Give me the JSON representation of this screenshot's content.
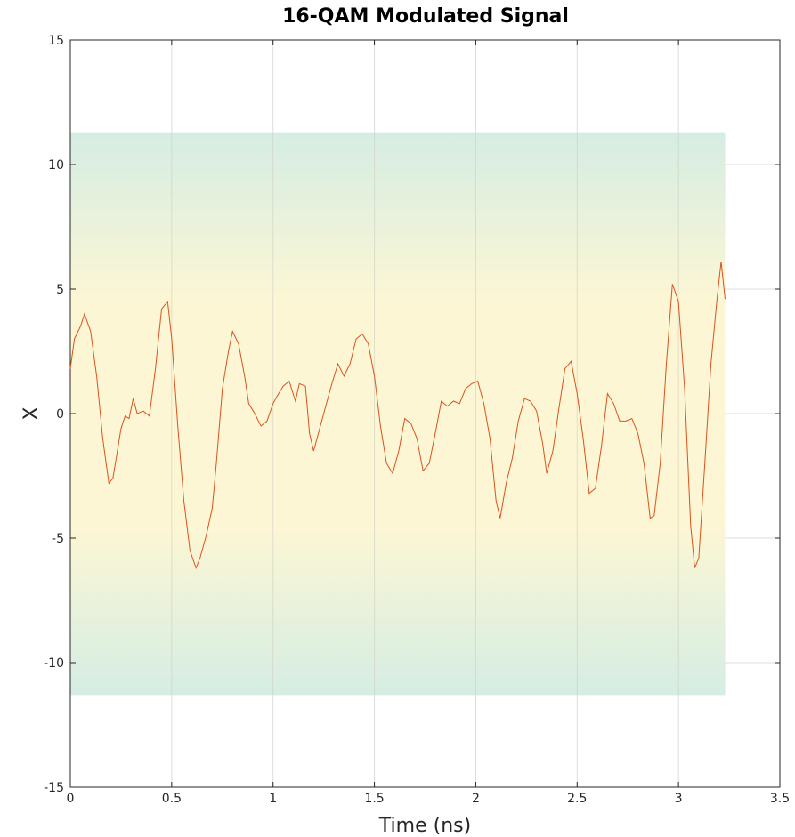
{
  "chart_data": {
    "type": "line",
    "title": "16-QAM Modulated Signal",
    "xlabel": "Time (ns)",
    "ylabel": "X",
    "xlim": [
      0,
      3.5
    ],
    "ylim": [
      -15,
      15
    ],
    "xticks": [
      0,
      0.5,
      1,
      1.5,
      2,
      2.5,
      3,
      3.5
    ],
    "xtick_labels": [
      "0",
      "0.5",
      "1",
      "1.5",
      "2",
      "2.5",
      "3",
      "3.5"
    ],
    "yticks": [
      -15,
      -10,
      -5,
      0,
      5,
      10,
      15
    ],
    "ytick_labels": [
      "-15",
      "-10",
      "-5",
      "0",
      "5",
      "10",
      "15"
    ],
    "grid": true,
    "background_band": {
      "x": [
        0,
        3.23
      ],
      "y": [
        -11.3,
        11.3
      ],
      "center_color": "#fcf6d2",
      "edge_color": "#d3ece2"
    },
    "series": [
      {
        "color": "#d9531e",
        "points": [
          [
            0.0,
            1.8
          ],
          [
            0.02,
            3.0
          ],
          [
            0.05,
            3.5
          ],
          [
            0.07,
            4.0
          ],
          [
            0.1,
            3.3
          ],
          [
            0.13,
            1.5
          ],
          [
            0.16,
            -1.0
          ],
          [
            0.19,
            -2.8
          ],
          [
            0.21,
            -2.6
          ],
          [
            0.23,
            -1.6
          ],
          [
            0.25,
            -0.6
          ],
          [
            0.27,
            -0.1
          ],
          [
            0.29,
            -0.2
          ],
          [
            0.31,
            0.6
          ],
          [
            0.33,
            0.0
          ],
          [
            0.36,
            0.1
          ],
          [
            0.39,
            -0.1
          ],
          [
            0.42,
            1.8
          ],
          [
            0.45,
            4.2
          ],
          [
            0.48,
            4.5
          ],
          [
            0.5,
            3.0
          ],
          [
            0.53,
            -0.5
          ],
          [
            0.56,
            -3.5
          ],
          [
            0.59,
            -5.5
          ],
          [
            0.62,
            -6.2
          ],
          [
            0.64,
            -5.8
          ],
          [
            0.67,
            -4.9
          ],
          [
            0.7,
            -3.8
          ],
          [
            0.72,
            -2.0
          ],
          [
            0.75,
            1.0
          ],
          [
            0.78,
            2.5
          ],
          [
            0.8,
            3.3
          ],
          [
            0.83,
            2.8
          ],
          [
            0.86,
            1.5
          ],
          [
            0.88,
            0.4
          ],
          [
            0.91,
            0.0
          ],
          [
            0.94,
            -0.5
          ],
          [
            0.97,
            -0.3
          ],
          [
            1.0,
            0.4
          ],
          [
            1.02,
            0.7
          ],
          [
            1.05,
            1.1
          ],
          [
            1.08,
            1.3
          ],
          [
            1.11,
            0.5
          ],
          [
            1.13,
            1.2
          ],
          [
            1.16,
            1.1
          ],
          [
            1.18,
            -0.8
          ],
          [
            1.2,
            -1.5
          ],
          [
            1.23,
            -0.6
          ],
          [
            1.26,
            0.3
          ],
          [
            1.29,
            1.2
          ],
          [
            1.32,
            2.0
          ],
          [
            1.35,
            1.5
          ],
          [
            1.38,
            2.0
          ],
          [
            1.41,
            3.0
          ],
          [
            1.44,
            3.2
          ],
          [
            1.47,
            2.8
          ],
          [
            1.5,
            1.5
          ],
          [
            1.53,
            -0.5
          ],
          [
            1.56,
            -2.0
          ],
          [
            1.59,
            -2.4
          ],
          [
            1.62,
            -1.5
          ],
          [
            1.65,
            -0.2
          ],
          [
            1.68,
            -0.4
          ],
          [
            1.71,
            -1.0
          ],
          [
            1.74,
            -2.3
          ],
          [
            1.77,
            -2.0
          ],
          [
            1.8,
            -0.8
          ],
          [
            1.83,
            0.5
          ],
          [
            1.86,
            0.3
          ],
          [
            1.89,
            0.5
          ],
          [
            1.92,
            0.4
          ],
          [
            1.95,
            1.0
          ],
          [
            1.98,
            1.2
          ],
          [
            2.01,
            1.3
          ],
          [
            2.04,
            0.4
          ],
          [
            2.07,
            -1.0
          ],
          [
            2.1,
            -3.5
          ],
          [
            2.12,
            -4.2
          ],
          [
            2.15,
            -2.8
          ],
          [
            2.18,
            -1.8
          ],
          [
            2.21,
            -0.3
          ],
          [
            2.24,
            0.6
          ],
          [
            2.27,
            0.5
          ],
          [
            2.3,
            0.1
          ],
          [
            2.33,
            -1.2
          ],
          [
            2.35,
            -2.4
          ],
          [
            2.38,
            -1.5
          ],
          [
            2.41,
            0.2
          ],
          [
            2.44,
            1.8
          ],
          [
            2.47,
            2.1
          ],
          [
            2.5,
            0.8
          ],
          [
            2.53,
            -1.0
          ],
          [
            2.56,
            -3.2
          ],
          [
            2.59,
            -3.0
          ],
          [
            2.62,
            -1.3
          ],
          [
            2.65,
            0.8
          ],
          [
            2.68,
            0.4
          ],
          [
            2.71,
            -0.3
          ],
          [
            2.74,
            -0.3
          ],
          [
            2.77,
            -0.2
          ],
          [
            2.8,
            -0.8
          ],
          [
            2.83,
            -2.0
          ],
          [
            2.86,
            -4.2
          ],
          [
            2.88,
            -4.1
          ],
          [
            2.91,
            -2.0
          ],
          [
            2.94,
            2.0
          ],
          [
            2.97,
            5.2
          ],
          [
            3.0,
            4.5
          ],
          [
            3.03,
            1.0
          ],
          [
            3.06,
            -4.5
          ],
          [
            3.08,
            -6.2
          ],
          [
            3.1,
            -5.8
          ],
          [
            3.13,
            -2.0
          ],
          [
            3.16,
            2.0
          ],
          [
            3.19,
            4.6
          ],
          [
            3.21,
            6.1
          ],
          [
            3.23,
            4.6
          ]
        ]
      }
    ]
  }
}
